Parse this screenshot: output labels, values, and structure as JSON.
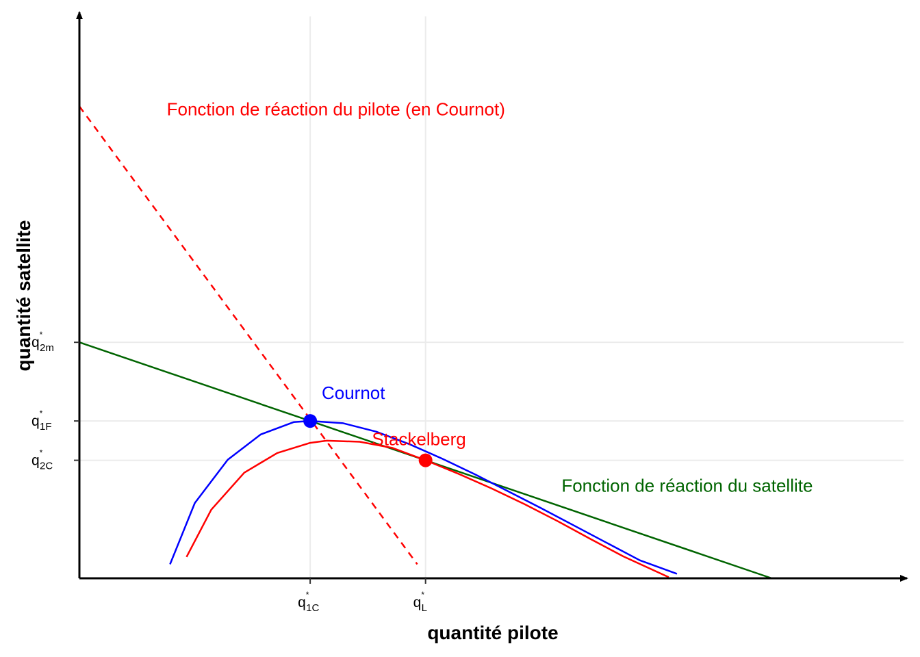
{
  "chart_data": {
    "type": "line",
    "xlabel": "quantité pilote",
    "ylabel": "quantité satellite",
    "xlim": [
      0,
      100
    ],
    "ylim": [
      0,
      100
    ],
    "grid": true,
    "x_ticks": [
      {
        "base": "q",
        "sup": "*",
        "sub": "1C",
        "value": 28
      },
      {
        "base": "q",
        "sup": "*",
        "sub": "L",
        "value": 42
      }
    ],
    "y_ticks": [
      {
        "base": "q",
        "sup": "*",
        "sub": "2m",
        "value": 42
      },
      {
        "base": "q",
        "sup": "*",
        "sub": "1F",
        "value": 28
      },
      {
        "base": "q",
        "sup": "*",
        "sub": "2C",
        "value": 21
      }
    ],
    "series": [
      {
        "id": "satellite-reaction",
        "color": "#006400",
        "style": "solid",
        "x": [
          0,
          28,
          42,
          56,
          84
        ],
        "y": [
          42,
          28,
          21,
          14,
          0
        ]
      },
      {
        "id": "pilot-reaction",
        "color": "#ff0000",
        "style": "dashed",
        "x": [
          0,
          41
        ],
        "y": [
          84,
          2.5
        ]
      },
      {
        "id": "isoprofit-cournot",
        "color": "#0000ff",
        "style": "solid",
        "x": [
          11,
          14,
          18,
          22,
          26,
          28,
          32,
          36,
          40,
          44,
          48,
          52,
          56,
          60,
          64,
          68,
          72.5
        ],
        "y": [
          2.5,
          13.4,
          21.1,
          25.6,
          27.8,
          28.0,
          27.6,
          26.1,
          23.9,
          21.3,
          18.5,
          15.5,
          12.5,
          9.4,
          6.3,
          3.2,
          0.8
        ]
      },
      {
        "id": "isoprofit-stackelberg",
        "color": "#ff0000",
        "style": "solid",
        "x": [
          13,
          16,
          20,
          24,
          28,
          30,
          34,
          38,
          42,
          46,
          50,
          54,
          58,
          62,
          66,
          71.5
        ],
        "y": [
          3.8,
          12.2,
          18.8,
          22.3,
          24.1,
          24.5,
          24.3,
          23.2,
          21.0,
          18.6,
          16.0,
          13.2,
          10.2,
          7.0,
          3.9,
          0.2
        ]
      }
    ],
    "points": [
      {
        "label": "Cournot",
        "color": "#0000ff",
        "x": 28,
        "y": 28
      },
      {
        "label": "Stackelberg",
        "color": "#ff0000",
        "x": 42,
        "y": 21
      }
    ],
    "annotations": [
      {
        "text": "Fonction de réaction du pilote (en Cournot)",
        "color": "#ff0000",
        "x": 10.6,
        "y": 83.5
      },
      {
        "text": "Cournot",
        "color": "#0000ff",
        "x": 29.4,
        "y": 33.0
      },
      {
        "text": "Stackelberg",
        "color": "#ff0000",
        "x": 35.5,
        "y": 24.8
      },
      {
        "text": "Fonction de réaction du satellite",
        "color": "#006400",
        "x": 58.5,
        "y": 16.5
      }
    ]
  }
}
